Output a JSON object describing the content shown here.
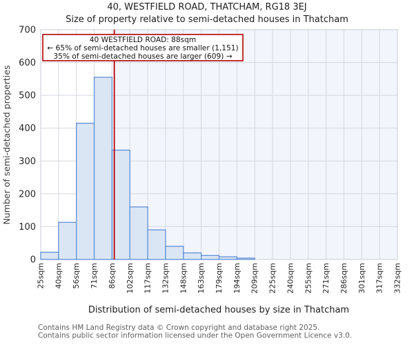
{
  "chart_data": {
    "type": "bar",
    "title": "40, WESTFIELD ROAD, THATCHAM, RG18 3EJ",
    "subtitle": "Size of property relative to semi-detached houses in Thatcham",
    "xlabel": "Distribution of semi-detached houses by size in Thatcham",
    "ylabel": "Number of semi-detached properties",
    "bin_edges_sqm": [
      25,
      40,
      56,
      71,
      86,
      102,
      117,
      132,
      148,
      163,
      179,
      194,
      209,
      225,
      240,
      255,
      271,
      286,
      301,
      317,
      332
    ],
    "bin_labels": [
      "25sqm",
      "40sqm",
      "56sqm",
      "71sqm",
      "86sqm",
      "102sqm",
      "117sqm",
      "132sqm",
      "148sqm",
      "163sqm",
      "179sqm",
      "194sqm",
      "209sqm",
      "225sqm",
      "240sqm",
      "255sqm",
      "271sqm",
      "286sqm",
      "301sqm",
      "317sqm",
      "332sqm"
    ],
    "values": [
      22,
      113,
      415,
      555,
      333,
      160,
      90,
      40,
      20,
      12,
      8,
      4,
      0,
      0,
      0,
      0,
      0,
      0,
      0,
      0
    ],
    "ylim": [
      0,
      700
    ],
    "yticks": [
      0,
      100,
      200,
      300,
      400,
      500,
      600,
      700
    ],
    "grid": true,
    "legend": null,
    "marker": {
      "address": "40 WESTFIELD ROAD",
      "size_sqm": 88,
      "smaller_pct": 65,
      "smaller_count": "1,151",
      "larger_pct": 35,
      "larger_count": "609"
    },
    "annotation": {
      "line1": "40 WESTFIELD ROAD: 88sqm",
      "line2": "← 65% of semi-detached houses are smaller (1,151)",
      "line3": "35% of semi-detached houses are larger (609) →"
    },
    "colors": {
      "bar_fill": "#dbe6f5",
      "bar_edge": "#5f8fd6",
      "marker_line": "#b40000",
      "annotation_border": "#b40000",
      "shade_right": "#f2f5fc"
    }
  },
  "footer": {
    "line1": "Contains HM Land Registry data © Crown copyright and database right 2025.",
    "line2": "Contains public sector information licensed under the Open Government Licence v3.0."
  }
}
